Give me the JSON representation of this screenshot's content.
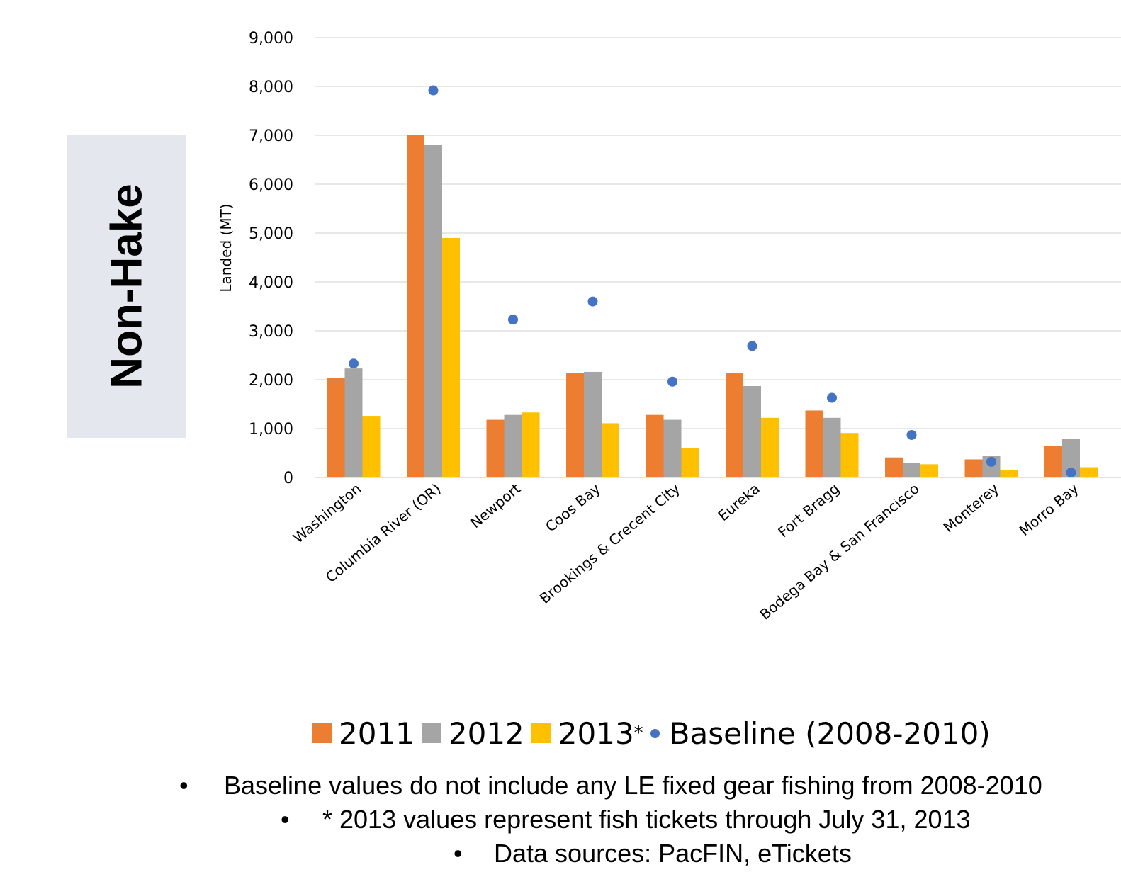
{
  "side_label": "Non-Hake",
  "chart_data": {
    "type": "bar",
    "ylabel": "Landed (MT)",
    "ylim": [
      0,
      9000
    ],
    "yticks": [
      0,
      1000,
      2000,
      3000,
      4000,
      5000,
      6000,
      7000,
      8000,
      9000
    ],
    "ytick_labels": [
      "0",
      "1,000",
      "2,000",
      "3,000",
      "4,000",
      "5,000",
      "6,000",
      "7,000",
      "8,000",
      "9,000"
    ],
    "grid": true,
    "legend_position": "bottom",
    "categories": [
      "Washington",
      "Columbia River (OR)",
      "Newport",
      "Coos Bay",
      "Brookings & Crecent City",
      "Eureka",
      "Fort Bragg",
      "Bodega Bay & San Francisco",
      "Monterey",
      "Morro Bay"
    ],
    "series": [
      {
        "name": "2011",
        "color": "#ed7d31",
        "type": "bar",
        "values": [
          2030,
          7000,
          1180,
          2130,
          1280,
          2130,
          1370,
          410,
          370,
          640
        ]
      },
      {
        "name": "2012",
        "color": "#a5a5a5",
        "type": "bar",
        "values": [
          2230,
          6800,
          1280,
          2160,
          1180,
          1870,
          1220,
          300,
          440,
          790
        ]
      },
      {
        "name": "2013",
        "color": "#ffc000",
        "type": "bar",
        "values": [
          1260,
          4900,
          1330,
          1110,
          600,
          1220,
          910,
          270,
          160,
          210
        ]
      },
      {
        "name": "Baseline (2008-2010)",
        "color": "#4472c4",
        "type": "scatter",
        "values": [
          2330,
          7920,
          3230,
          3600,
          1960,
          2690,
          1630,
          870,
          320,
          100
        ]
      }
    ]
  },
  "legend": {
    "items": [
      {
        "label": "2011",
        "color": "#ed7d31",
        "marker": "square",
        "sup": ""
      },
      {
        "label": "2012",
        "color": "#a5a5a5",
        "marker": "square",
        "sup": ""
      },
      {
        "label": "2013",
        "color": "#ffc000",
        "marker": "square",
        "sup": "*"
      },
      {
        "label": "Baseline (2008-2010)",
        "color": "#4472c4",
        "marker": "dot",
        "sup": ""
      }
    ]
  },
  "notes": {
    "bullet": "•",
    "line1": "Baseline values do not include any LE fixed gear fishing from 2008-2010",
    "line2": "* 2013 values represent fish tickets through July 31, 2013",
    "line3": "Data sources: PacFIN, eTickets"
  }
}
